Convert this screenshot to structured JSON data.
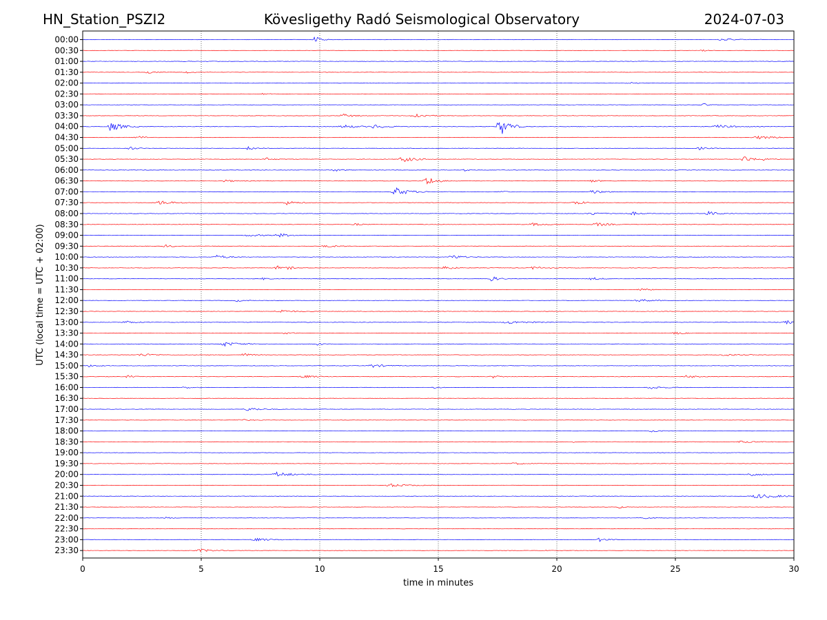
{
  "header": {
    "station": "HN_Station_PSZI2",
    "observatory": "Kövesligethy Radó Seismological Observatory",
    "date": "2024-07-03"
  },
  "chart_data": {
    "type": "line",
    "title": "Kövesligethy Radó Seismological Observatory",
    "xlabel": "time in minutes",
    "ylabel": "UTC (local time = UTC + 02:00)",
    "xlim": [
      0,
      30
    ],
    "xticks": [
      0,
      5,
      10,
      15,
      20,
      25,
      30
    ],
    "grid": "vertical dotted at x ticks",
    "colors": {
      "even_row": "#0000ff",
      "odd_row": "#ff0000",
      "grid": "#000000"
    },
    "rows": [
      {
        "label": "00:00",
        "noise": 0.25,
        "events": [
          {
            "t": 9.8,
            "a": 5,
            "w": 0.25
          },
          {
            "t": 27.0,
            "a": 1.5,
            "w": 0.6
          }
        ]
      },
      {
        "label": "00:30",
        "noise": 0.2,
        "events": [
          {
            "t": 26.1,
            "a": 1.5,
            "w": 0.2
          }
        ]
      },
      {
        "label": "01:00",
        "noise": 0.3,
        "events": []
      },
      {
        "label": "01:30",
        "noise": 0.25,
        "events": [
          {
            "t": 2.7,
            "a": 2.5,
            "w": 0.3
          },
          {
            "t": 4.4,
            "a": 1.5,
            "w": 0.2
          }
        ]
      },
      {
        "label": "02:00",
        "noise": 0.25,
        "events": [
          {
            "t": 23.0,
            "a": 1.5,
            "w": 0.3
          }
        ]
      },
      {
        "label": "02:30",
        "noise": 0.25,
        "events": [
          {
            "t": 7.6,
            "a": 1.5,
            "w": 0.2
          }
        ]
      },
      {
        "label": "03:00",
        "noise": 0.25,
        "events": [
          {
            "t": 26.2,
            "a": 2,
            "w": 0.2
          }
        ]
      },
      {
        "label": "03:30",
        "noise": 0.3,
        "events": [
          {
            "t": 11.0,
            "a": 2.5,
            "w": 0.4
          },
          {
            "t": 14.0,
            "a": 4,
            "w": 0.4
          }
        ]
      },
      {
        "label": "04:00",
        "noise": 0.35,
        "events": [
          {
            "t": 1.2,
            "a": 7,
            "w": 0.4
          },
          {
            "t": 11.0,
            "a": 2.5,
            "w": 0.5
          },
          {
            "t": 12.3,
            "a": 2.5,
            "w": 0.5
          },
          {
            "t": 17.6,
            "a": 14,
            "w": 0.35
          },
          {
            "t": 26.8,
            "a": 2.5,
            "w": 0.6
          }
        ]
      },
      {
        "label": "04:30",
        "noise": 0.3,
        "events": [
          {
            "t": 2.3,
            "a": 2.5,
            "w": 0.3
          },
          {
            "t": 28.5,
            "a": 2,
            "w": 0.7
          }
        ]
      },
      {
        "label": "05:00",
        "noise": 0.3,
        "events": [
          {
            "t": 7.0,
            "a": 3,
            "w": 0.3
          },
          {
            "t": 2.0,
            "a": 2,
            "w": 0.3
          },
          {
            "t": 26.0,
            "a": 2,
            "w": 0.3
          }
        ]
      },
      {
        "label": "05:30",
        "noise": 0.3,
        "events": [
          {
            "t": 7.7,
            "a": 2.5,
            "w": 0.3
          },
          {
            "t": 13.5,
            "a": 4,
            "w": 0.5
          },
          {
            "t": 27.9,
            "a": 5,
            "w": 0.3
          },
          {
            "t": 28.6,
            "a": 2,
            "w": 0.3
          }
        ]
      },
      {
        "label": "06:00",
        "noise": 0.3,
        "events": [
          {
            "t": 10.6,
            "a": 2,
            "w": 0.3
          },
          {
            "t": 16.1,
            "a": 1.5,
            "w": 0.2
          }
        ]
      },
      {
        "label": "06:30",
        "noise": 0.3,
        "events": [
          {
            "t": 14.5,
            "a": 7,
            "w": 0.35
          },
          {
            "t": 6.0,
            "a": 1.5,
            "w": 0.5
          },
          {
            "t": 21.5,
            "a": 2,
            "w": 0.3
          }
        ]
      },
      {
        "label": "07:00",
        "noise": 0.35,
        "events": [
          {
            "t": 13.2,
            "a": 6,
            "w": 0.5
          },
          {
            "t": 21.5,
            "a": 3,
            "w": 0.4
          },
          {
            "t": 17.6,
            "a": 1.5,
            "w": 0.2
          }
        ]
      },
      {
        "label": "07:30",
        "noise": 0.3,
        "events": [
          {
            "t": 3.3,
            "a": 3,
            "w": 0.5
          },
          {
            "t": 8.6,
            "a": 3,
            "w": 0.4
          },
          {
            "t": 20.8,
            "a": 3,
            "w": 0.4
          }
        ]
      },
      {
        "label": "08:00",
        "noise": 0.3,
        "events": [
          {
            "t": 21.5,
            "a": 2,
            "w": 0.5
          },
          {
            "t": 23.2,
            "a": 2.5,
            "w": 0.3
          },
          {
            "t": 26.4,
            "a": 3,
            "w": 0.4
          }
        ]
      },
      {
        "label": "08:30",
        "noise": 0.3,
        "events": [
          {
            "t": 19.0,
            "a": 2,
            "w": 0.5
          },
          {
            "t": 21.7,
            "a": 2.5,
            "w": 0.5
          },
          {
            "t": 11.5,
            "a": 1.5,
            "w": 0.3
          }
        ]
      },
      {
        "label": "09:00",
        "noise": 0.3,
        "events": [
          {
            "t": 8.3,
            "a": 2.5,
            "w": 0.5
          },
          {
            "t": 7.0,
            "a": 1.5,
            "w": 0.6
          }
        ]
      },
      {
        "label": "09:30",
        "noise": 0.3,
        "events": [
          {
            "t": 3.5,
            "a": 2,
            "w": 0.3
          },
          {
            "t": 10.3,
            "a": 1.5,
            "w": 0.6
          }
        ]
      },
      {
        "label": "10:00",
        "noise": 0.3,
        "events": [
          {
            "t": 5.7,
            "a": 3,
            "w": 0.4
          },
          {
            "t": 15.6,
            "a": 3,
            "w": 0.4
          }
        ]
      },
      {
        "label": "10:30",
        "noise": 0.3,
        "events": [
          {
            "t": 8.2,
            "a": 3,
            "w": 0.3
          },
          {
            "t": 8.7,
            "a": 2,
            "w": 0.2
          },
          {
            "t": 15.3,
            "a": 3,
            "w": 0.3
          },
          {
            "t": 19.0,
            "a": 2,
            "w": 0.4
          }
        ]
      },
      {
        "label": "11:00",
        "noise": 0.3,
        "events": [
          {
            "t": 17.2,
            "a": 4,
            "w": 0.3
          },
          {
            "t": 21.5,
            "a": 2,
            "w": 0.4
          },
          {
            "t": 7.6,
            "a": 1.5,
            "w": 0.2
          }
        ]
      },
      {
        "label": "11:30",
        "noise": 0.25,
        "events": [
          {
            "t": 23.5,
            "a": 1.5,
            "w": 0.4
          }
        ]
      },
      {
        "label": "12:00",
        "noise": 0.3,
        "events": [
          {
            "t": 23.5,
            "a": 2,
            "w": 0.5
          },
          {
            "t": 6.5,
            "a": 1.5,
            "w": 0.3
          }
        ]
      },
      {
        "label": "12:30",
        "noise": 0.3,
        "events": [
          {
            "t": 8.3,
            "a": 2.5,
            "w": 0.5
          }
        ]
      },
      {
        "label": "13:00",
        "noise": 0.35,
        "events": [
          {
            "t": 1.8,
            "a": 2,
            "w": 0.4
          },
          {
            "t": 18.0,
            "a": 2,
            "w": 0.8
          },
          {
            "t": 29.7,
            "a": 2.5,
            "w": 0.4
          }
        ]
      },
      {
        "label": "13:30",
        "noise": 0.3,
        "events": [
          {
            "t": 8.5,
            "a": 1.5,
            "w": 0.3
          },
          {
            "t": 25.0,
            "a": 2,
            "w": 0.3
          }
        ]
      },
      {
        "label": "14:00",
        "noise": 0.3,
        "events": [
          {
            "t": 6.0,
            "a": 3,
            "w": 0.6
          },
          {
            "t": 9.9,
            "a": 2.5,
            "w": 0.15
          }
        ]
      },
      {
        "label": "14:30",
        "noise": 0.3,
        "events": [
          {
            "t": 2.5,
            "a": 2,
            "w": 0.5
          },
          {
            "t": 6.8,
            "a": 2.5,
            "w": 0.3
          },
          {
            "t": 27.0,
            "a": 1.5,
            "w": 0.6
          }
        ]
      },
      {
        "label": "15:00",
        "noise": 0.3,
        "events": [
          {
            "t": 0.3,
            "a": 2,
            "w": 0.3
          },
          {
            "t": 12.2,
            "a": 2.5,
            "w": 0.5
          }
        ]
      },
      {
        "label": "15:30",
        "noise": 0.3,
        "events": [
          {
            "t": 1.9,
            "a": 2.5,
            "w": 0.2
          },
          {
            "t": 9.3,
            "a": 2,
            "w": 0.5
          },
          {
            "t": 17.3,
            "a": 2,
            "w": 0.3
          },
          {
            "t": 25.5,
            "a": 2.5,
            "w": 0.3
          }
        ]
      },
      {
        "label": "16:00",
        "noise": 0.3,
        "events": [
          {
            "t": 4.3,
            "a": 1.5,
            "w": 0.3
          },
          {
            "t": 14.8,
            "a": 2,
            "w": 0.2
          },
          {
            "t": 24.0,
            "a": 2,
            "w": 0.5
          }
        ]
      },
      {
        "label": "16:30",
        "noise": 0.25,
        "events": []
      },
      {
        "label": "17:00",
        "noise": 0.3,
        "events": [
          {
            "t": 7.0,
            "a": 2.5,
            "w": 0.5
          }
        ]
      },
      {
        "label": "17:30",
        "noise": 0.25,
        "events": [
          {
            "t": 6.5,
            "a": 1.5,
            "w": 0.5
          }
        ]
      },
      {
        "label": "18:00",
        "noise": 0.25,
        "events": [
          {
            "t": 24.0,
            "a": 1.5,
            "w": 0.3
          }
        ]
      },
      {
        "label": "18:30",
        "noise": 0.3,
        "events": [
          {
            "t": 20.7,
            "a": 2,
            "w": 0.15
          },
          {
            "t": 27.8,
            "a": 1.5,
            "w": 0.5
          }
        ]
      },
      {
        "label": "19:00",
        "noise": 0.25,
        "events": []
      },
      {
        "label": "19:30",
        "noise": 0.25,
        "events": [
          {
            "t": 18.2,
            "a": 1.5,
            "w": 0.4
          }
        ]
      },
      {
        "label": "20:00",
        "noise": 0.3,
        "events": [
          {
            "t": 8.2,
            "a": 3.5,
            "w": 0.6
          },
          {
            "t": 28.2,
            "a": 2.5,
            "w": 0.4
          }
        ]
      },
      {
        "label": "20:30",
        "noise": 0.3,
        "events": [
          {
            "t": 13.0,
            "a": 2,
            "w": 0.8
          }
        ]
      },
      {
        "label": "21:00",
        "noise": 0.3,
        "events": [
          {
            "t": 28.5,
            "a": 3,
            "w": 0.9
          }
        ]
      },
      {
        "label": "21:30",
        "noise": 0.25,
        "events": [
          {
            "t": 22.6,
            "a": 2.5,
            "w": 0.15
          }
        ]
      },
      {
        "label": "22:00",
        "noise": 0.25,
        "events": [
          {
            "t": 23.5,
            "a": 1.5,
            "w": 0.4
          },
          {
            "t": 3.5,
            "a": 1.5,
            "w": 0.2
          }
        ]
      },
      {
        "label": "22:30",
        "noise": 0.25,
        "events": []
      },
      {
        "label": "23:00",
        "noise": 0.3,
        "events": [
          {
            "t": 7.3,
            "a": 2,
            "w": 0.6
          },
          {
            "t": 21.8,
            "a": 2.5,
            "w": 0.3
          }
        ]
      },
      {
        "label": "23:30",
        "noise": 0.25,
        "events": [
          {
            "t": 5.0,
            "a": 2,
            "w": 0.6
          },
          {
            "t": 19.3,
            "a": 1.5,
            "w": 0.2
          }
        ]
      }
    ]
  }
}
